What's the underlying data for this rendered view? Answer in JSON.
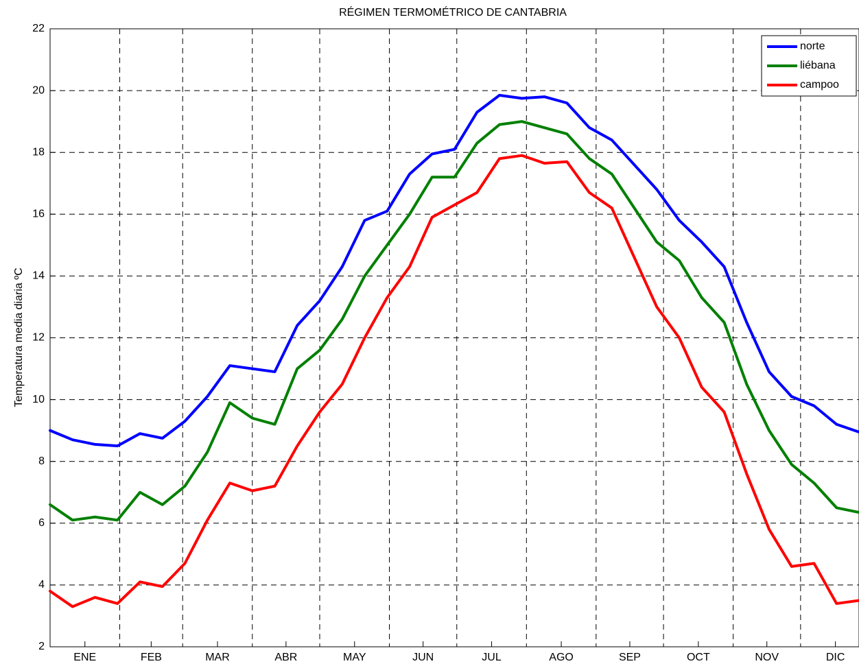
{
  "chart_data": {
    "type": "line",
    "title": "RÉGIMEN TERMOMÉTRICO DE CANTABRIA",
    "y_label": "Temperatura media diaria ºC",
    "x": [
      0,
      10,
      20,
      30,
      40,
      50,
      60,
      70,
      80,
      90,
      100,
      110,
      120,
      130,
      140,
      150,
      160,
      170,
      180,
      190,
      200,
      210,
      220,
      230,
      240,
      250,
      260,
      270,
      280,
      290,
      300,
      310,
      320,
      330,
      340,
      350,
      360
    ],
    "series": [
      {
        "name": "norte",
        "color": "#0000ff",
        "values": [
          9.0,
          8.7,
          8.55,
          8.5,
          8.9,
          8.75,
          9.3,
          10.1,
          11.1,
          11.0,
          10.9,
          12.4,
          13.2,
          14.3,
          15.8,
          16.1,
          17.3,
          17.95,
          18.1,
          19.3,
          19.85,
          19.75,
          19.8,
          19.6,
          18.8,
          18.4,
          17.6,
          16.8,
          15.8,
          15.1,
          14.3,
          12.5,
          10.9,
          10.1,
          9.8,
          9.2,
          8.95
        ]
      },
      {
        "name": "liébana",
        "color": "#008000",
        "values": [
          6.6,
          6.1,
          6.2,
          6.1,
          7.0,
          6.6,
          7.2,
          8.3,
          9.9,
          9.4,
          9.2,
          11.0,
          11.6,
          12.6,
          14.0,
          15.0,
          16.0,
          17.2,
          17.2,
          18.3,
          18.9,
          19.0,
          18.8,
          18.6,
          17.8,
          17.3,
          16.2,
          15.1,
          14.5,
          13.3,
          12.5,
          10.5,
          9.0,
          7.9,
          7.3,
          6.5,
          6.35
        ]
      },
      {
        "name": "campoo",
        "color": "#ff0000",
        "values": [
          3.8,
          3.3,
          3.6,
          3.4,
          4.1,
          3.95,
          4.7,
          6.1,
          7.3,
          7.05,
          7.2,
          8.5,
          9.6,
          10.5,
          12.0,
          13.3,
          14.3,
          15.9,
          16.3,
          16.7,
          17.8,
          17.9,
          17.65,
          17.7,
          16.7,
          16.2,
          14.6,
          13.0,
          12.0,
          10.4,
          9.6,
          7.6,
          5.8,
          4.6,
          4.7,
          3.4,
          3.5
        ]
      }
    ],
    "xlim": [
      0,
      360
    ],
    "xticks": [
      {
        "value": 15.5,
        "label": "ENE"
      },
      {
        "value": 45,
        "label": "FEB"
      },
      {
        "value": 74.5,
        "label": "MAR"
      },
      {
        "value": 105,
        "label": "ABR"
      },
      {
        "value": 135.5,
        "label": "MAY"
      },
      {
        "value": 166,
        "label": "JUN"
      },
      {
        "value": 196.5,
        "label": "JUL"
      },
      {
        "value": 227.5,
        "label": "AGO"
      },
      {
        "value": 258,
        "label": "SEP"
      },
      {
        "value": 288.5,
        "label": "OCT"
      },
      {
        "value": 319,
        "label": "NOV"
      },
      {
        "value": 349.5,
        "label": "DIC"
      }
    ],
    "xgrid": [
      31,
      59,
      90,
      120,
      151,
      181,
      212,
      243,
      273,
      304,
      334
    ],
    "ylim": [
      2,
      22
    ],
    "yticks": [
      2,
      4,
      6,
      8,
      10,
      12,
      14,
      16,
      18,
      20,
      22
    ],
    "grid": true,
    "legend": "upper right"
  }
}
